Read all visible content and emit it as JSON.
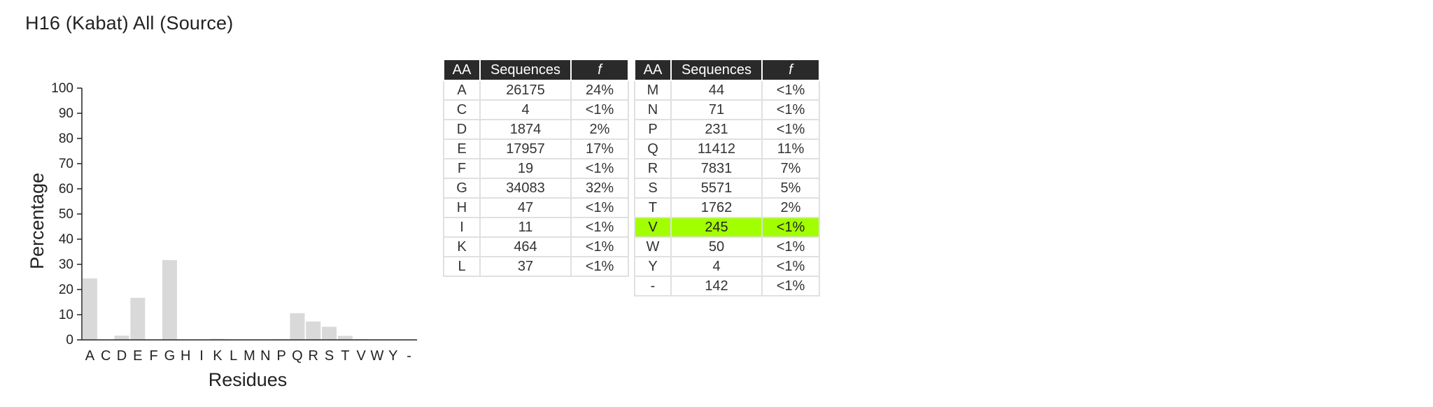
{
  "title": "H16 (Kabat) All (Source)",
  "chart_data": {
    "type": "bar",
    "xlabel": "Residues",
    "ylabel": "Percentage",
    "ylim": [
      0,
      100
    ],
    "yticks": [
      0,
      10,
      20,
      30,
      40,
      50,
      60,
      70,
      80,
      90,
      100
    ],
    "categories": [
      "A",
      "C",
      "D",
      "E",
      "F",
      "G",
      "H",
      "I",
      "K",
      "L",
      "M",
      "N",
      "P",
      "Q",
      "R",
      "S",
      "T",
      "V",
      "W",
      "Y",
      "-"
    ],
    "values": [
      24.4,
      0.004,
      1.7,
      16.7,
      0.02,
      31.7,
      0.04,
      0.01,
      0.43,
      0.03,
      0.04,
      0.07,
      0.21,
      10.6,
      7.3,
      5.2,
      1.6,
      0.23,
      0.05,
      0.004,
      0.13
    ],
    "highlight": "V",
    "bar_color": "#d9d9d9",
    "highlight_color": "#a2ff00"
  },
  "table": {
    "headers": {
      "aa": "AA",
      "sequences": "Sequences",
      "f": "f"
    },
    "left": [
      {
        "aa": "A",
        "sequences": "26175",
        "f": "24%"
      },
      {
        "aa": "C",
        "sequences": "4",
        "f": "<1%"
      },
      {
        "aa": "D",
        "sequences": "1874",
        "f": "2%"
      },
      {
        "aa": "E",
        "sequences": "17957",
        "f": "17%"
      },
      {
        "aa": "F",
        "sequences": "19",
        "f": "<1%"
      },
      {
        "aa": "G",
        "sequences": "34083",
        "f": "32%"
      },
      {
        "aa": "H",
        "sequences": "47",
        "f": "<1%"
      },
      {
        "aa": "I",
        "sequences": "11",
        "f": "<1%"
      },
      {
        "aa": "K",
        "sequences": "464",
        "f": "<1%"
      },
      {
        "aa": "L",
        "sequences": "37",
        "f": "<1%"
      }
    ],
    "right": [
      {
        "aa": "M",
        "sequences": "44",
        "f": "<1%"
      },
      {
        "aa": "N",
        "sequences": "71",
        "f": "<1%"
      },
      {
        "aa": "P",
        "sequences": "231",
        "f": "<1%"
      },
      {
        "aa": "Q",
        "sequences": "11412",
        "f": "11%"
      },
      {
        "aa": "R",
        "sequences": "7831",
        "f": "7%"
      },
      {
        "aa": "S",
        "sequences": "5571",
        "f": "5%"
      },
      {
        "aa": "T",
        "sequences": "1762",
        "f": "2%"
      },
      {
        "aa": "V",
        "sequences": "245",
        "f": "<1%",
        "highlight": true
      },
      {
        "aa": "W",
        "sequences": "50",
        "f": "<1%"
      },
      {
        "aa": "Y",
        "sequences": "4",
        "f": "<1%"
      },
      {
        "aa": "-",
        "sequences": "142",
        "f": "<1%"
      }
    ]
  }
}
